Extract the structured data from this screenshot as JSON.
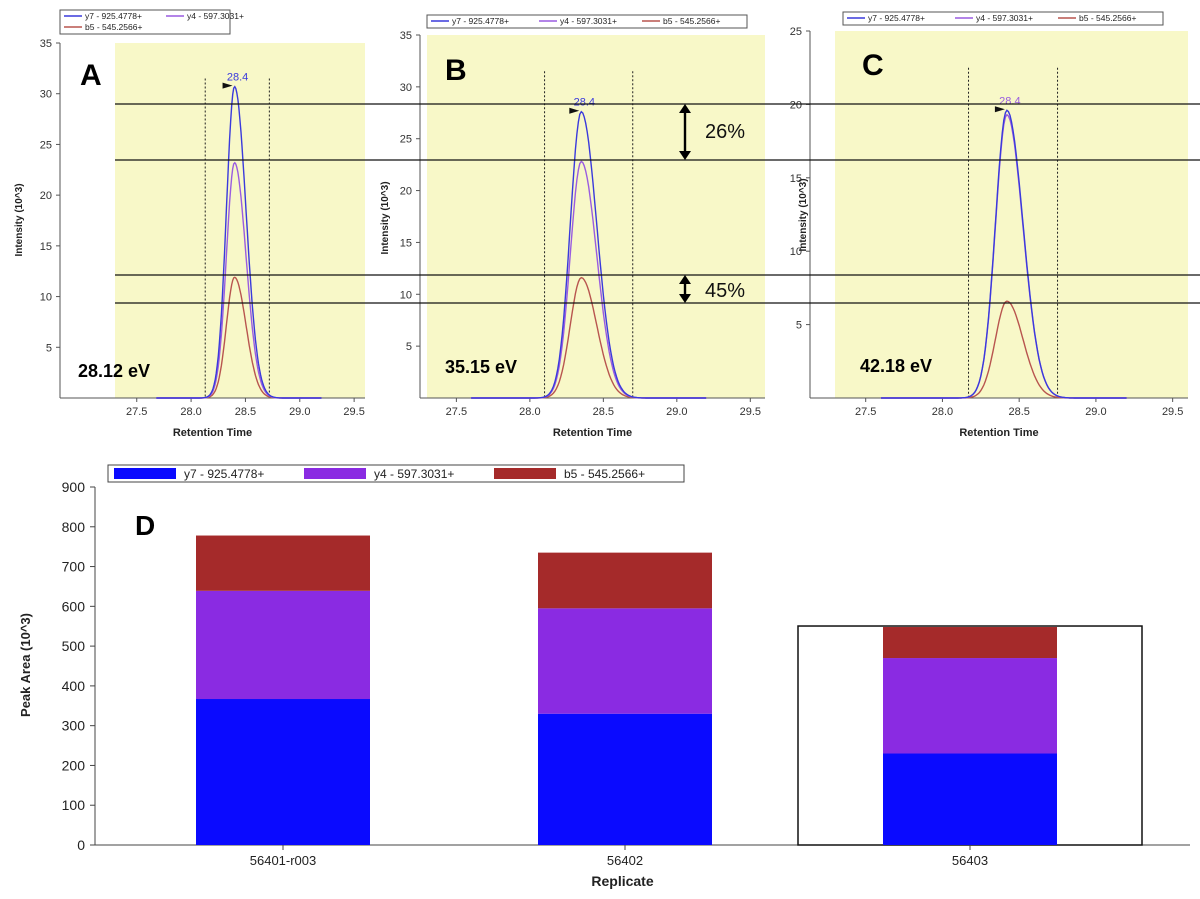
{
  "colors": {
    "y7": "#3a3adc",
    "y4": "#9a5ce0",
    "b5": "#b8554f",
    "bar_y7": "#0a0aff",
    "bar_y4": "#8a2be2",
    "bar_b5": "#a52a2a",
    "plot_bg": "#f8f8c8"
  },
  "chart_data": [
    {
      "type": "line",
      "panel_label": "A",
      "energy_label": "28.12 eV",
      "xlabel": "Retention Time",
      "ylabel": "Intensity (10^3)",
      "xlim": [
        27.3,
        29.6
      ],
      "ylim": [
        0,
        35
      ],
      "x_ticks": [
        "27.5",
        "28.0",
        "28.5",
        "29.0",
        "29.5"
      ],
      "y_ticks": [
        "5",
        "10",
        "15",
        "20",
        "25",
        "30",
        "35"
      ],
      "peak_label": "28.4",
      "peak_label_color": "#3a3adc",
      "legend": [
        "y7 - 925.4778+",
        "y4 - 597.3031+",
        "b5 - 545.2566+"
      ],
      "integration_bounds": [
        28.13,
        28.72
      ],
      "series": [
        {
          "name": "y7 - 925.4778+",
          "peak_x": 28.4,
          "peak_y": 30.7
        },
        {
          "name": "y4 - 597.3031+",
          "peak_x": 28.4,
          "peak_y": 23.2
        },
        {
          "name": "b5 - 545.2566+",
          "peak_x": 28.4,
          "peak_y": 11.9
        }
      ],
      "x_range": [
        27.68,
        29.2
      ]
    },
    {
      "type": "line",
      "panel_label": "B",
      "energy_label": "35.15 eV",
      "xlabel": "Retention Time",
      "ylabel": "Intensity (10^3)",
      "xlim": [
        27.3,
        29.6
      ],
      "ylim": [
        0,
        35
      ],
      "x_ticks": [
        "27.5",
        "28.0",
        "28.5",
        "29.0",
        "29.5"
      ],
      "y_ticks": [
        "5",
        "10",
        "15",
        "20",
        "25",
        "30",
        "35"
      ],
      "peak_label": "28.4",
      "peak_label_color": "#3a3adc",
      "legend": [
        "y7 - 925.4778+",
        "y4 - 597.3031+",
        "b5 - 545.2566+"
      ],
      "integration_bounds": [
        28.1,
        28.7
      ],
      "series": [
        {
          "name": "y7 - 925.4778+",
          "peak_x": 28.35,
          "peak_y": 27.6
        },
        {
          "name": "y4 - 597.3031+",
          "peak_x": 28.35,
          "peak_y": 22.8
        },
        {
          "name": "b5 - 545.2566+",
          "peak_x": 28.35,
          "peak_y": 11.6
        }
      ],
      "x_range": [
        27.6,
        29.2
      ]
    },
    {
      "type": "line",
      "panel_label": "C",
      "energy_label": "42.18 eV",
      "xlabel": "Retention Time",
      "ylabel": "Intensity (10^3)",
      "xlim": [
        27.3,
        29.6
      ],
      "ylim": [
        0,
        25
      ],
      "x_ticks": [
        "27.5",
        "28.0",
        "28.5",
        "29.0",
        "29.5"
      ],
      "y_ticks": [
        "5",
        "10",
        "15",
        "20",
        "25"
      ],
      "peak_label": "28.4",
      "peak_label_color": "#9a5ce0",
      "legend": [
        "y7 - 925.4778+",
        "y4 - 597.3031+",
        "b5 - 545.2566+"
      ],
      "integration_bounds": [
        28.17,
        28.75
      ],
      "series": [
        {
          "name": "y7 - 925.4778+",
          "peak_x": 28.42,
          "peak_y": 19.6
        },
        {
          "name": "y4 - 597.3031+",
          "peak_x": 28.42,
          "peak_y": 19.3
        },
        {
          "name": "b5 - 545.2566+",
          "peak_x": 28.42,
          "peak_y": 6.6
        }
      ],
      "x_range": [
        27.6,
        29.2
      ]
    },
    {
      "type": "bar",
      "stacked": true,
      "panel_label": "D",
      "xlabel": "Replicate",
      "ylabel": "Peak Area (10^3)",
      "ylim": [
        0,
        900
      ],
      "y_ticks": [
        "0",
        "100",
        "200",
        "300",
        "400",
        "500",
        "600",
        "700",
        "800",
        "900"
      ],
      "categories": [
        "56401-r003",
        "56402",
        "56403"
      ],
      "selected_category": "56403",
      "series": [
        {
          "name": "y7 - 925.4778+",
          "values": [
            367,
            330,
            230
          ]
        },
        {
          "name": "y4 - 597.3031+",
          "values": [
            272,
            265,
            240
          ]
        },
        {
          "name": "b5 - 545.2566+",
          "values": [
            139,
            140,
            78
          ]
        }
      ]
    }
  ],
  "annotations": {
    "upper_percent": "26%",
    "lower_percent": "45%"
  }
}
